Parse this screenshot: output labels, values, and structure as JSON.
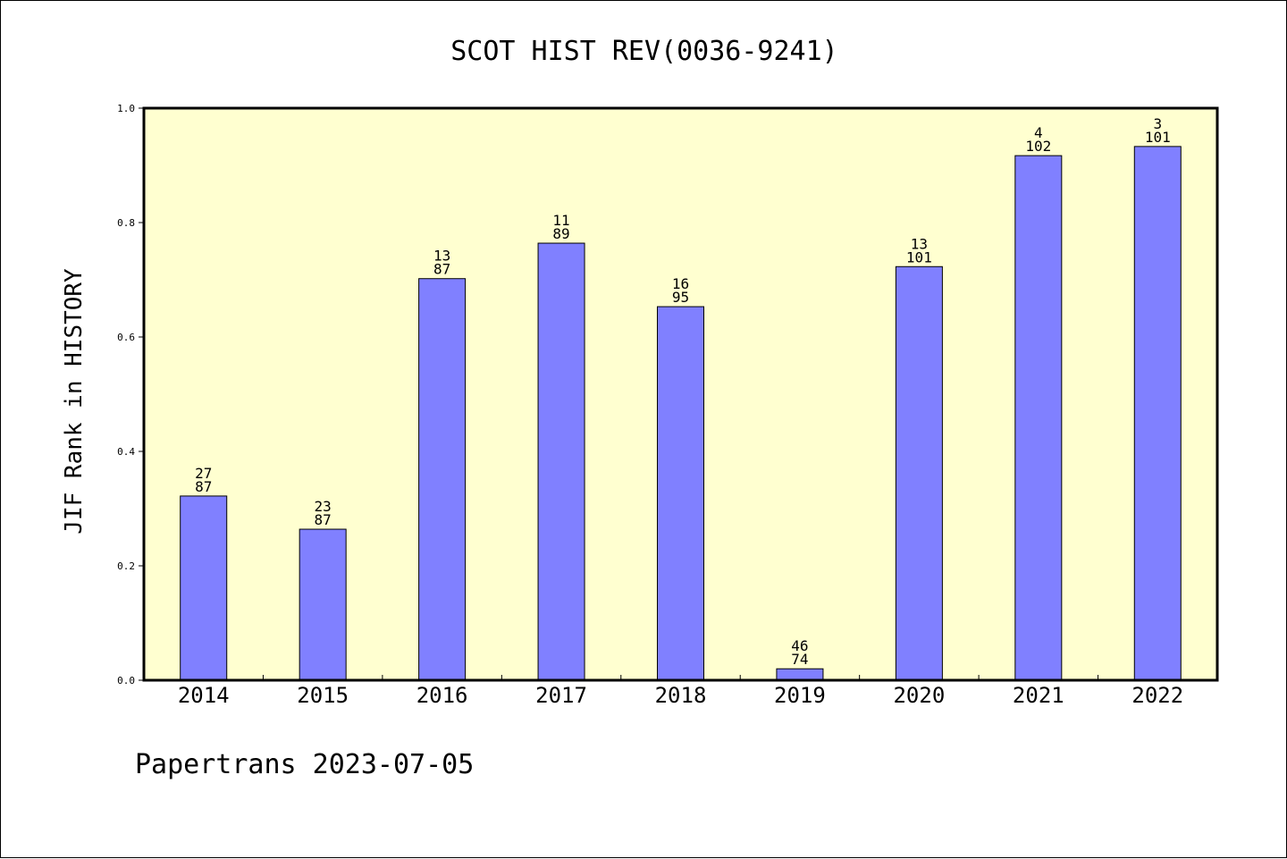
{
  "chart_data": {
    "type": "bar",
    "title": "SCOT HIST REV(0036-9241)",
    "ylabel": "JIF Rank in HISTORY",
    "xlabel": "",
    "ylim": [
      0,
      1.0
    ],
    "yticks": [
      "0.0",
      "0.2",
      "0.4",
      "0.6",
      "0.8",
      "1.0"
    ],
    "categories": [
      "2014",
      "2015",
      "2016",
      "2017",
      "2018",
      "2019",
      "2020",
      "2021",
      "2022"
    ],
    "values": [
      0.322,
      0.264,
      0.702,
      0.764,
      0.653,
      0.02,
      0.723,
      0.917,
      0.933
    ],
    "ranks": [
      "27",
      "23",
      "13",
      "11",
      "16",
      "46",
      "13",
      "4",
      "3"
    ],
    "totals": [
      "87",
      "87",
      "87",
      "89",
      "95",
      "74",
      "101",
      "102",
      "101"
    ],
    "background": "#ffffd0",
    "bar_color": "#8080ff",
    "grid": false
  },
  "footer": "Papertrans 2023-07-05"
}
